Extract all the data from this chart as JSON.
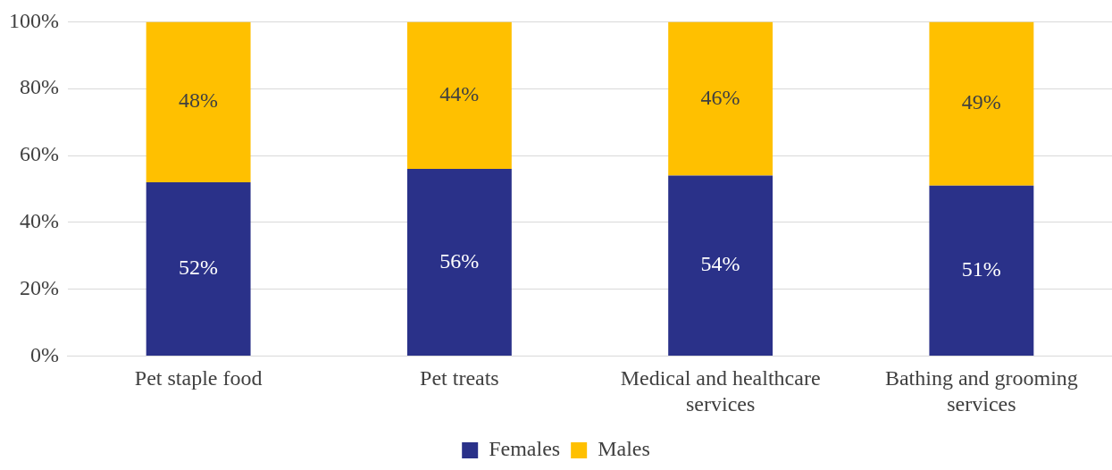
{
  "chart_data": {
    "type": "bar",
    "stacked": true,
    "categories": [
      "Pet staple food",
      "Pet treats",
      "Medical and healthcare services",
      "Bathing and grooming services"
    ],
    "series": [
      {
        "name": "Females",
        "color": "#2a3189",
        "values": [
          52,
          56,
          54,
          51
        ],
        "value_labels": [
          "52%",
          "56%",
          "54%",
          "51%"
        ]
      },
      {
        "name": "Males",
        "color": "#ffc000",
        "values": [
          48,
          44,
          46,
          49
        ],
        "value_labels": [
          "48%",
          "44%",
          "46%",
          "49%"
        ]
      }
    ],
    "ylim": [
      0,
      100
    ],
    "yticks": [
      {
        "value": 0,
        "label": "0%"
      },
      {
        "value": 20,
        "label": "20%"
      },
      {
        "value": 40,
        "label": "40%"
      },
      {
        "value": 60,
        "label": "60%"
      },
      {
        "value": 80,
        "label": "80%"
      },
      {
        "value": 100,
        "label": "100%"
      }
    ],
    "grid": "y",
    "legend": "bottom"
  }
}
